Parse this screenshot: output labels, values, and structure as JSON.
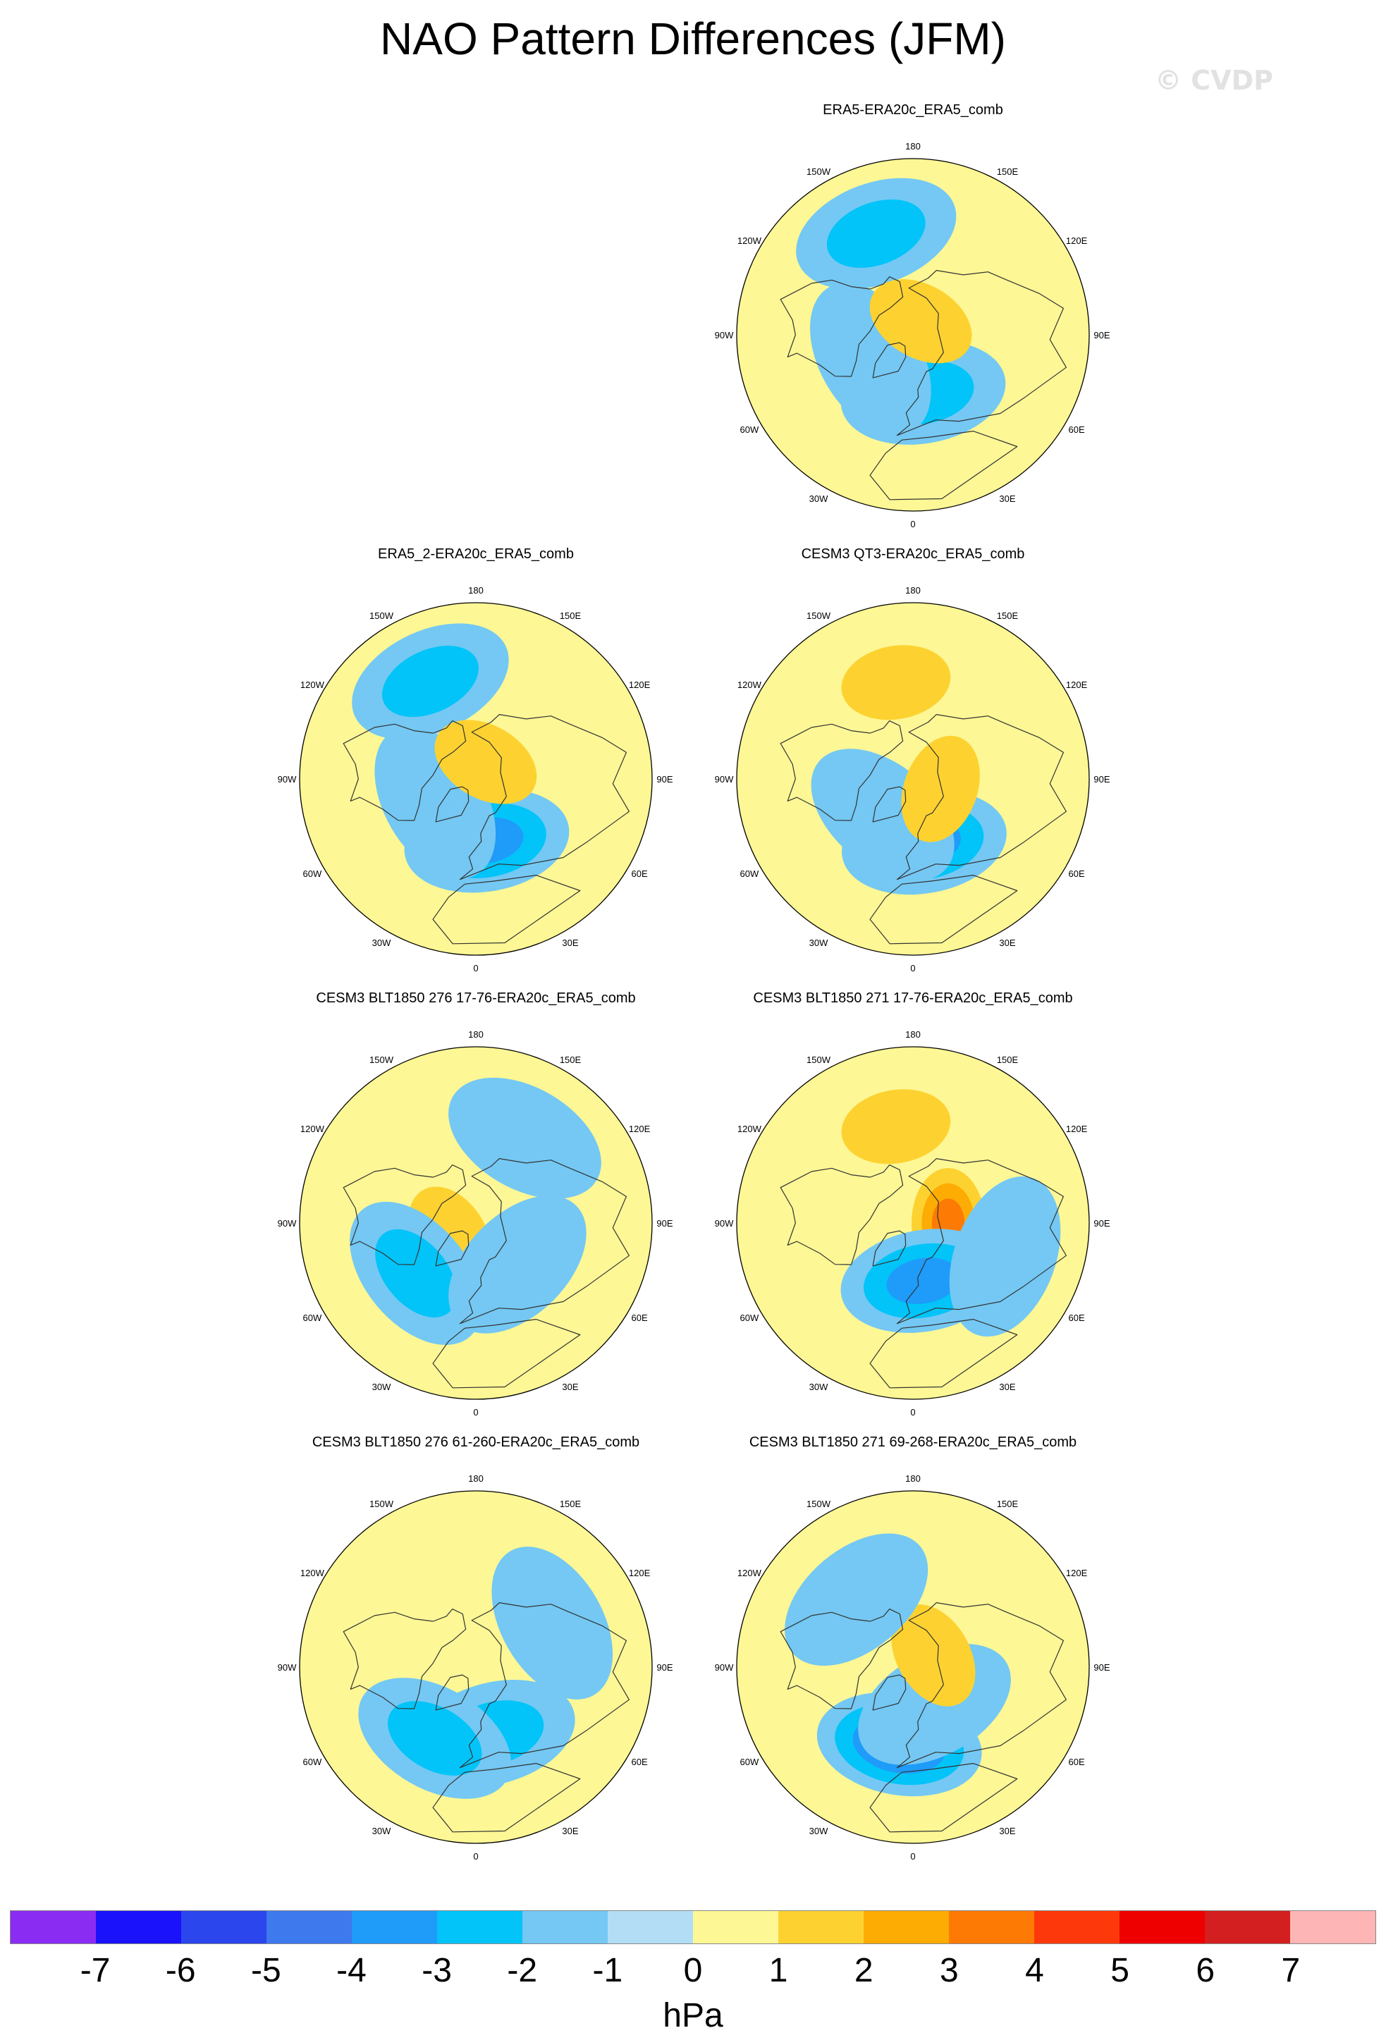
{
  "title": "NAO Pattern Differences (JFM)",
  "watermark": "© CVDP",
  "units": "hPa",
  "colors": {
    "land_outline": "#333333",
    "border": "#000000"
  },
  "lon_labels": [
    "180",
    "150E",
    "120E",
    "90E",
    "60E",
    "30E",
    "0",
    "30W",
    "60W",
    "90W",
    "120W",
    "150W"
  ],
  "panels": [
    {
      "title": "ERA5-ERA20c_ERA5_comb",
      "blobs": [
        {
          "lat": 60,
          "lon": 10,
          "level": -2
        },
        {
          "lat": 65,
          "lon": -60,
          "level": -1
        },
        {
          "lat": 35,
          "lon": -160,
          "level": -2
        },
        {
          "lat": 82,
          "lon": 150,
          "level": 1
        }
      ]
    },
    {
      "title": "ERA5_2-ERA20c_ERA5_comb",
      "blobs": [
        {
          "lat": 58,
          "lon": 10,
          "level": -3
        },
        {
          "lat": 66,
          "lon": -60,
          "level": -1
        },
        {
          "lat": 35,
          "lon": -155,
          "level": -2
        },
        {
          "lat": 80,
          "lon": 150,
          "level": 1
        }
      ]
    },
    {
      "title": "CESM3 QT3-ERA20c_ERA5_comb",
      "blobs": [
        {
          "lat": 57,
          "lon": 10,
          "level": -3
        },
        {
          "lat": 66,
          "lon": -40,
          "level": -1
        },
        {
          "lat": 40,
          "lon": -170,
          "level": 1
        },
        {
          "lat": 75,
          "lon": 70,
          "level": 1
        }
      ]
    },
    {
      "title": "CESM3 BLT1850 276 17-76-ERA20c_ERA5_comb",
      "blobs": [
        {
          "lat": 75,
          "lon": -60,
          "level": 1
        },
        {
          "lat": 50,
          "lon": -50,
          "level": -2
        },
        {
          "lat": 60,
          "lon": 45,
          "level": -1
        },
        {
          "lat": 40,
          "lon": 150,
          "level": -1
        }
      ]
    },
    {
      "title": "CESM3 BLT1850 271 17-76-ERA20c_ERA5_comb",
      "blobs": [
        {
          "lat": 72,
          "lon": 90,
          "level": 3
        },
        {
          "lat": 40,
          "lon": -170,
          "level": 1
        },
        {
          "lat": 60,
          "lon": 10,
          "level": -3
        },
        {
          "lat": 40,
          "lon": 70,
          "level": -1
        }
      ]
    },
    {
      "title": "CESM3 BLT1850 276 61-260-ERA20c_ERA5_comb",
      "blobs": [
        {
          "lat": 55,
          "lon": 15,
          "level": -2
        },
        {
          "lat": 48,
          "lon": -30,
          "level": -2
        },
        {
          "lat": 45,
          "lon": 120,
          "level": -1
        }
      ]
    },
    {
      "title": "CESM3 BLT1850 271 69-268-ERA20c_ERA5_comb",
      "blobs": [
        {
          "lat": 50,
          "lon": -10,
          "level": -4
        },
        {
          "lat": 68,
          "lon": 30,
          "level": -1
        },
        {
          "lat": 78,
          "lon": 120,
          "level": 1
        },
        {
          "lat": 45,
          "lon": -140,
          "level": -1
        }
      ]
    }
  ],
  "colorbar": {
    "colors": [
      "#8b2cf2",
      "#1a12fb",
      "#2b46ed",
      "#3e79ee",
      "#1f9bf9",
      "#02c4f8",
      "#74c8f3",
      "#b3ddf5",
      "#fdf795",
      "#fdd230",
      "#fdac03",
      "#fd7a04",
      "#fd390b",
      "#ee0000",
      "#d31f1f",
      "#fdb5b5"
    ],
    "labels": [
      "-7",
      "-6",
      "-5",
      "-4",
      "-3",
      "-2",
      "-1",
      "0",
      "1",
      "2",
      "3",
      "4",
      "5",
      "6",
      "7"
    ]
  }
}
